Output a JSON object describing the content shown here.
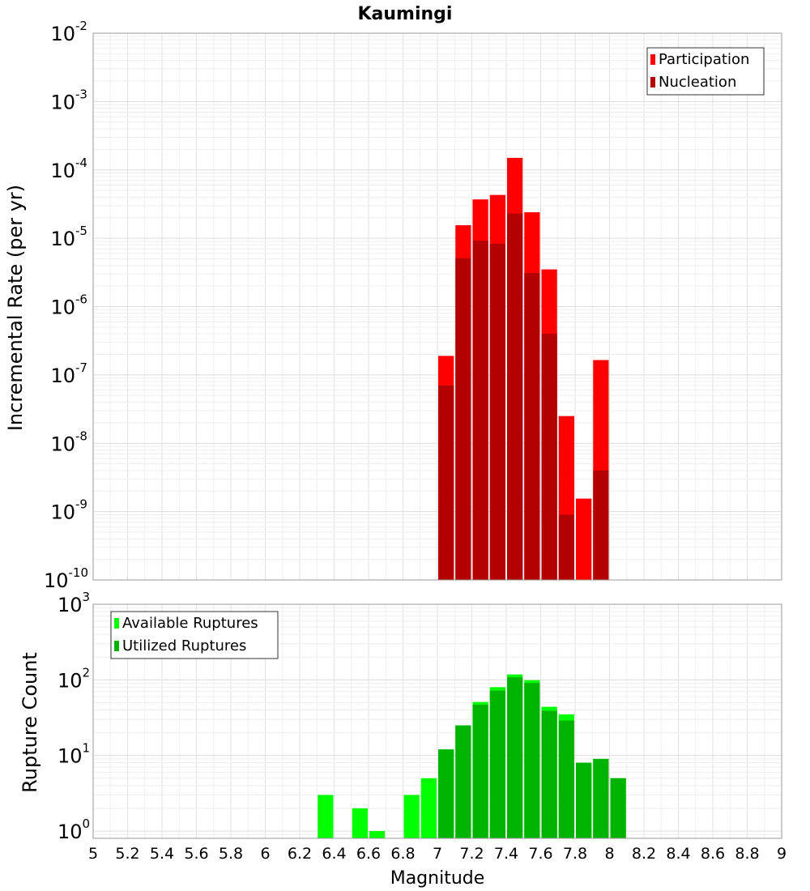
{
  "chart_data": {
    "type": "bar",
    "title": "Kaumingi",
    "xlabel": "Magnitude",
    "xlim": [
      5,
      9
    ],
    "x_ticks": [
      "5",
      "5.2",
      "5.4",
      "5.6",
      "5.8",
      "6",
      "6.2",
      "6.4",
      "6.6",
      "6.8",
      "7",
      "7.2",
      "7.4",
      "7.6",
      "7.8",
      "8",
      "8.2",
      "8.4",
      "8.6",
      "8.8",
      "9"
    ],
    "bin_width": 0.1,
    "grid": true,
    "panels": [
      {
        "ylabel": "Incremental Rate (per yr)",
        "yscale": "log",
        "ylim": [
          1e-10,
          0.01
        ],
        "y_ticks": [
          {
            "base": "10",
            "exp": "-10",
            "value": 1e-10
          },
          {
            "base": "10",
            "exp": "-9",
            "value": 1e-09
          },
          {
            "base": "10",
            "exp": "-8",
            "value": 1e-08
          },
          {
            "base": "10",
            "exp": "-7",
            "value": 1e-07
          },
          {
            "base": "10",
            "exp": "-6",
            "value": 1e-06
          },
          {
            "base": "10",
            "exp": "-5",
            "value": 1e-05
          },
          {
            "base": "10",
            "exp": "-4",
            "value": 0.0001
          },
          {
            "base": "10",
            "exp": "-3",
            "value": 0.001
          },
          {
            "base": "10",
            "exp": "-2",
            "value": 0.01
          }
        ],
        "legend_position": "top-right",
        "series": [
          {
            "name": "Participation",
            "color": "#ff0000",
            "points": [
              {
                "x": 7.05,
                "y": 1.9e-07
              },
              {
                "x": 7.15,
                "y": 1.55e-05
              },
              {
                "x": 7.25,
                "y": 3.7e-05
              },
              {
                "x": 7.35,
                "y": 4.3e-05
              },
              {
                "x": 7.45,
                "y": 0.00015
              },
              {
                "x": 7.55,
                "y": 2.4e-05
              },
              {
                "x": 7.65,
                "y": 3.5e-06
              },
              {
                "x": 7.75,
                "y": 2.5e-08
              },
              {
                "x": 7.85,
                "y": 1.55e-09
              },
              {
                "x": 7.95,
                "y": 1.65e-07
              }
            ]
          },
          {
            "name": "Nucleation",
            "color": "#b30000",
            "points": [
              {
                "x": 7.05,
                "y": 7e-08
              },
              {
                "x": 7.15,
                "y": 5.1e-06
              },
              {
                "x": 7.25,
                "y": 9.2e-06
              },
              {
                "x": 7.35,
                "y": 8.3e-06
              },
              {
                "x": 7.45,
                "y": 2.3e-05
              },
              {
                "x": 7.55,
                "y": 3.1e-06
              },
              {
                "x": 7.65,
                "y": 4e-07
              },
              {
                "x": 7.75,
                "y": 9e-10
              },
              {
                "x": 7.85,
                "y": 1e-10
              },
              {
                "x": 7.95,
                "y": 4e-09
              }
            ]
          }
        ]
      },
      {
        "ylabel": "Rupture Count",
        "yscale": "log",
        "ylim": [
          0.8,
          1000
        ],
        "y_ticks": [
          {
            "base": "10",
            "exp": "0",
            "value": 1
          },
          {
            "base": "10",
            "exp": "1",
            "value": 10
          },
          {
            "base": "10",
            "exp": "2",
            "value": 100
          },
          {
            "base": "10",
            "exp": "3",
            "value": 1000
          }
        ],
        "legend_position": "top-left",
        "series": [
          {
            "name": "Available Ruptures",
            "color": "#00ff00",
            "points": [
              {
                "x": 6.35,
                "y": 3
              },
              {
                "x": 6.55,
                "y": 2
              },
              {
                "x": 6.65,
                "y": 1
              },
              {
                "x": 6.85,
                "y": 3
              },
              {
                "x": 6.95,
                "y": 5
              },
              {
                "x": 7.05,
                "y": 12
              },
              {
                "x": 7.15,
                "y": 25
              },
              {
                "x": 7.25,
                "y": 51
              },
              {
                "x": 7.35,
                "y": 80
              },
              {
                "x": 7.45,
                "y": 118
              },
              {
                "x": 7.55,
                "y": 99
              },
              {
                "x": 7.65,
                "y": 44
              },
              {
                "x": 7.75,
                "y": 35
              },
              {
                "x": 7.85,
                "y": 8
              },
              {
                "x": 7.95,
                "y": 9
              },
              {
                "x": 8.05,
                "y": 5
              }
            ]
          },
          {
            "name": "Utilized Ruptures",
            "color": "#00b300",
            "points": [
              {
                "x": 7.05,
                "y": 12
              },
              {
                "x": 7.15,
                "y": 25
              },
              {
                "x": 7.25,
                "y": 47
              },
              {
                "x": 7.35,
                "y": 72
              },
              {
                "x": 7.45,
                "y": 108
              },
              {
                "x": 7.55,
                "y": 91
              },
              {
                "x": 7.65,
                "y": 39
              },
              {
                "x": 7.75,
                "y": 29
              },
              {
                "x": 7.85,
                "y": 8
              },
              {
                "x": 7.95,
                "y": 9
              },
              {
                "x": 8.05,
                "y": 5
              }
            ]
          }
        ]
      }
    ]
  }
}
